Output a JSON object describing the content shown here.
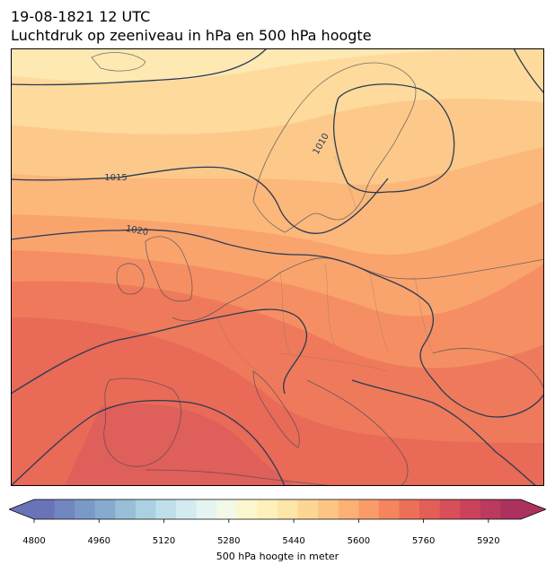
{
  "title": {
    "line1": "19-08-1821 12 UTC",
    "line2": "Luchtdruk op zeeniveau in hPa en 500 hPa hoogte"
  },
  "map": {
    "region": "Europe",
    "contour_labels": {
      "c1010": "1010",
      "c1015": "1015",
      "c1020": "1020"
    }
  },
  "colorbar": {
    "label": "500 hPa hoogte in meter",
    "ticks": [
      "4800",
      "4960",
      "5120",
      "5280",
      "5440",
      "5600",
      "5760",
      "5920"
    ],
    "range": [
      4800,
      6000
    ],
    "colors": [
      "#6a73b7",
      "#7187bf",
      "#7b99c6",
      "#86abcf",
      "#98bfd8",
      "#abd0e2",
      "#bfe0eb",
      "#d4ecf1",
      "#e6f4f2",
      "#f2f9e6",
      "#fbf7cd",
      "#fff0bb",
      "#fee5a8",
      "#fed694",
      "#fdc583",
      "#fcb174",
      "#f99c68",
      "#f4855e",
      "#ec6f58",
      "#e35e57",
      "#d84f58",
      "#cb435b",
      "#bb3a5d",
      "#ab325e"
    ]
  }
}
